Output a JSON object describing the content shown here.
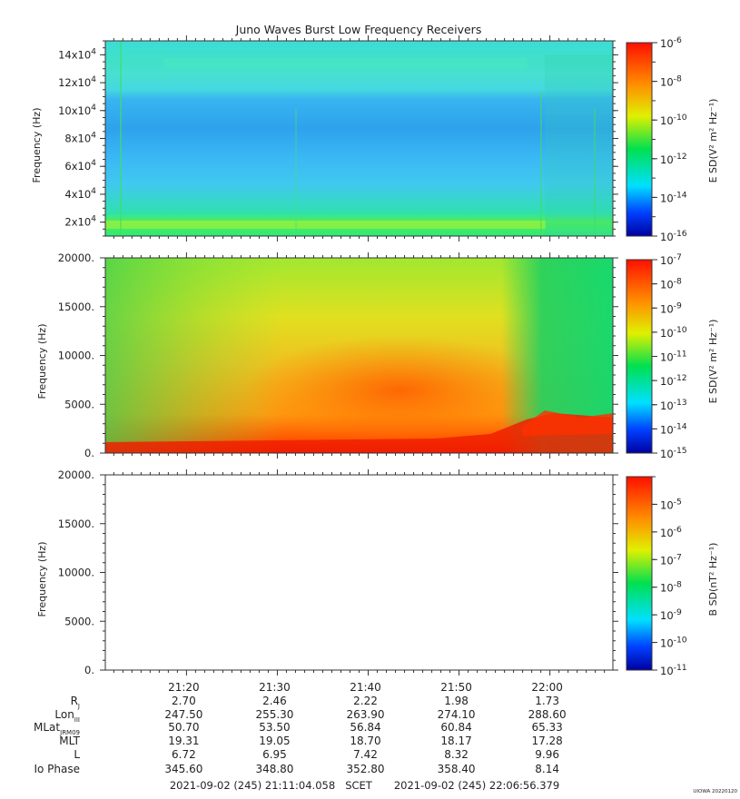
{
  "title": "Juno Waves Burst Low Frequency Receivers",
  "watermark": "UIOWA 20220120",
  "time_range": {
    "start": "2021-09-02 (245) 21:11:04.058",
    "mid": "SCET",
    "end": "2021-09-02 (245) 22:06:56.379"
  },
  "ephemeris": {
    "row_labels": [
      {
        "main": "R",
        "sub": "J"
      },
      {
        "main": "Lon",
        "sub": "III"
      },
      {
        "main": "MLat",
        "sub": "JRM09"
      },
      {
        "main": "MLT",
        "sub": ""
      },
      {
        "main": "L",
        "sub": ""
      },
      {
        "main": "Io Phase",
        "sub": ""
      }
    ],
    "times": [
      "21:20",
      "21:30",
      "21:40",
      "21:50",
      "22:00"
    ],
    "rows": [
      [
        "2.70",
        "2.46",
        "2.22",
        "1.98",
        "1.73"
      ],
      [
        "247.50",
        "255.30",
        "263.90",
        "274.10",
        "288.60"
      ],
      [
        "50.70",
        "53.50",
        "56.84",
        "60.84",
        "65.33"
      ],
      [
        "19.31",
        "19.05",
        "18.70",
        "18.17",
        "17.28"
      ],
      [
        "6.72",
        "6.95",
        "7.42",
        "8.32",
        "9.96"
      ],
      [
        "345.60",
        "348.80",
        "352.80",
        "358.40",
        "8.14"
      ]
    ]
  },
  "chart_data": [
    {
      "type": "heatmap",
      "title": "Juno Waves Burst Low Frequency Receivers",
      "ylabel": "Frequency (Hz)",
      "ylim": [
        10000,
        150000
      ],
      "y_ticks": [
        {
          "base": "2x10",
          "exp": "4"
        },
        {
          "base": "4x10",
          "exp": "4"
        },
        {
          "base": "6x10",
          "exp": "4"
        },
        {
          "base": "8x10",
          "exp": "4"
        },
        {
          "base": "10x10",
          "exp": "4"
        },
        {
          "base": "12x10",
          "exp": "4"
        },
        {
          "base": "14x10",
          "exp": "4"
        }
      ],
      "colorbar": {
        "label": "E SD(V² m² Hz⁻¹)",
        "scale": "log",
        "range_exp": [
          -16,
          -6
        ],
        "ticks": [
          {
            "base": "10",
            "exp": "-6"
          },
          {
            "base": "10",
            "exp": "-8"
          },
          {
            "base": "10",
            "exp": "-10"
          },
          {
            "base": "10",
            "exp": "-12"
          },
          {
            "base": "10",
            "exp": "-14"
          },
          {
            "base": "10",
            "exp": "-16"
          }
        ]
      },
      "description": "Mostly cyan background (~1e-13); green-yellow band near 2x10^4 Hz; lighter band 2x10^4-6x10^4 Hz; bluer region 6x10^4-10x10^4 Hz; green band near 12x10^4-14x10^4 Hz"
    },
    {
      "type": "heatmap",
      "ylabel": "Frequency (Hz)",
      "ylim": [
        0,
        20000
      ],
      "y_ticks": [
        "0.",
        "5000.",
        "10000.",
        "15000.",
        "20000."
      ],
      "colorbar": {
        "label": "E SD(V² m² Hz⁻¹)",
        "scale": "log",
        "range_exp": [
          -15,
          -7
        ],
        "ticks": [
          {
            "base": "10",
            "exp": "-7"
          },
          {
            "base": "10",
            "exp": "-8"
          },
          {
            "base": "10",
            "exp": "-9"
          },
          {
            "base": "10",
            "exp": "-10"
          },
          {
            "base": "10",
            "exp": "-11"
          },
          {
            "base": "10",
            "exp": "-12"
          },
          {
            "base": "10",
            "exp": "-13"
          },
          {
            "base": "10",
            "exp": "-14"
          },
          {
            "base": "10",
            "exp": "-15"
          }
        ]
      },
      "description": "Intense emission: red below ~1500 Hz, orange-red core 3000-8000 Hz rising toward 21:55, yellow to 17000 Hz, green above; after 21:59 emission drops to ~3000-5000 Hz"
    },
    {
      "type": "heatmap",
      "ylabel": "Frequency (Hz)",
      "ylim": [
        0,
        20000
      ],
      "y_ticks": [
        "0.",
        "5000.",
        "10000.",
        "15000.",
        "20000."
      ],
      "colorbar": {
        "label": "B SD(nT² Hz⁻¹)",
        "scale": "log",
        "range_exp": [
          -11,
          -4
        ],
        "ticks": [
          {
            "base": "10",
            "exp": "-5"
          },
          {
            "base": "10",
            "exp": "-6"
          },
          {
            "base": "10",
            "exp": "-7"
          },
          {
            "base": "10",
            "exp": "-8"
          },
          {
            "base": "10",
            "exp": "-9"
          },
          {
            "base": "10",
            "exp": "-10"
          },
          {
            "base": "10",
            "exp": "-11"
          }
        ]
      },
      "description": "No data (blank panel)"
    }
  ]
}
